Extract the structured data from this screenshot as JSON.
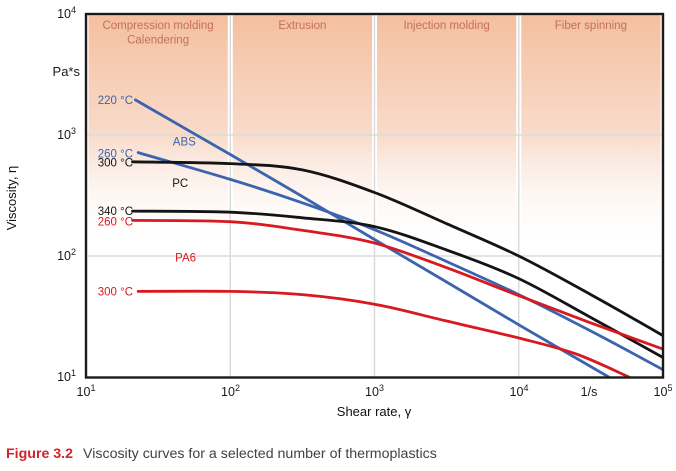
{
  "figure": {
    "label": "Figure 3.2",
    "caption": "Viscosity curves for a selected number of thermoplastics"
  },
  "axes": {
    "y_title": "Viscosity, η",
    "y_unit": "Pa*s",
    "y_ticks": [
      {
        "base": "10",
        "exp": "4"
      },
      {
        "base": "10",
        "exp": "3"
      },
      {
        "base": "10",
        "exp": "2"
      },
      {
        "base": "10",
        "exp": "1"
      }
    ],
    "x_title": "Shear rate, γ",
    "x_unit": "1/s",
    "x_ticks": [
      {
        "base": "10",
        "exp": "1"
      },
      {
        "base": "10",
        "exp": "2"
      },
      {
        "base": "10",
        "exp": "3"
      },
      {
        "base": "10",
        "exp": "4"
      },
      {
        "base": "10",
        "exp": "5"
      }
    ]
  },
  "colors": {
    "abs": "#3c64ae",
    "pc": "#141414",
    "pa6": "#d8191f",
    "band_top": "#f4bf9f",
    "band_text": "#c56f5a",
    "grid": "#d9d9d9",
    "frame": "#1a1a1a",
    "figure_label": "#d2232a",
    "caption_text": "#3f4245"
  },
  "chart_data": {
    "type": "line",
    "title": "Viscosity curves for a selected number of thermoplastics",
    "xlabel": "Shear rate, γ (1/s)",
    "ylabel": "Viscosity, η (Pa*s)",
    "x_scale": "log",
    "y_scale": "log",
    "xlim": [
      10,
      100000
    ],
    "ylim": [
      10,
      10000
    ],
    "grid": true,
    "x_gridlines": [
      100,
      1000,
      10000
    ],
    "y_gridlines": [
      1000,
      100
    ],
    "process_regions": [
      {
        "lines": [
          "Compression molding",
          "Calendering"
        ],
        "x_range": [
          10,
          100
        ]
      },
      {
        "lines": [
          "Extrusion"
        ],
        "x_range": [
          100,
          1000
        ]
      },
      {
        "lines": [
          "Injection molding"
        ],
        "x_range": [
          1000,
          10000
        ]
      },
      {
        "lines": [
          "Fiber spinning"
        ],
        "x_range": [
          10000,
          100000
        ]
      }
    ],
    "series": [
      {
        "name": "ABS 220 C",
        "material": "ABS",
        "temperature": "220 °C",
        "color": "#3c64ae",
        "points": [
          [
            22,
            1950
          ],
          [
            100,
            690
          ],
          [
            316,
            310
          ],
          [
            1000,
            137
          ],
          [
            3160,
            61
          ],
          [
            10000,
            27
          ],
          [
            42000,
            10
          ]
        ]
      },
      {
        "name": "ABS 260 C",
        "material": "ABS",
        "temperature": "260 °C",
        "color": "#3c64ae",
        "points": [
          [
            23,
            715
          ],
          [
            100,
            430
          ],
          [
            316,
            275
          ],
          [
            1000,
            165
          ],
          [
            3160,
            90
          ],
          [
            10000,
            48
          ],
          [
            31600,
            24
          ],
          [
            100000,
            11.5
          ]
        ]
      },
      {
        "name": "PC 300 C",
        "material": "PC",
        "temperature": "300 °C",
        "color": "#141414",
        "points": [
          [
            21,
            600
          ],
          [
            100,
            580
          ],
          [
            316,
            515
          ],
          [
            1000,
            335
          ],
          [
            3160,
            185
          ],
          [
            10000,
            100
          ],
          [
            31600,
            48
          ],
          [
            100000,
            22
          ]
        ]
      },
      {
        "name": "PC 340 C",
        "material": "PC",
        "temperature": "340 °C",
        "color": "#141414",
        "points": [
          [
            21,
            235
          ],
          [
            100,
            230
          ],
          [
            316,
            207
          ],
          [
            1000,
            175
          ],
          [
            3160,
            112
          ],
          [
            10000,
            65
          ],
          [
            31600,
            31
          ],
          [
            100000,
            14.5
          ]
        ]
      },
      {
        "name": "PA6 260 C",
        "material": "PA6",
        "temperature": "260 °C",
        "color": "#d8191f",
        "points": [
          [
            21,
            197
          ],
          [
            100,
            192
          ],
          [
            316,
            163
          ],
          [
            1000,
            128
          ],
          [
            3160,
            80
          ],
          [
            10000,
            47
          ],
          [
            31600,
            28
          ],
          [
            100000,
            17
          ]
        ]
      },
      {
        "name": "PA6 300 C",
        "material": "PA6",
        "temperature": "300 °C",
        "color": "#d8191f",
        "points": [
          [
            23,
            51
          ],
          [
            100,
            51
          ],
          [
            316,
            48
          ],
          [
            1000,
            40
          ],
          [
            3160,
            29
          ],
          [
            10000,
            21
          ],
          [
            25000,
            15.5
          ],
          [
            58000,
            10
          ]
        ]
      }
    ],
    "annotations": [
      {
        "text": "220 °C",
        "color": "#3c64ae",
        "shear": 16,
        "viscosity": 1950
      },
      {
        "text": "260 °C",
        "color": "#3c64ae",
        "shear": 16,
        "viscosity": 700
      },
      {
        "text": "300 °C",
        "color": "#141414",
        "shear": 16,
        "viscosity": 590
      },
      {
        "text": "ABS",
        "color": "#3c64ae",
        "shear": 48,
        "viscosity": 880
      },
      {
        "text": "PC",
        "color": "#141414",
        "shear": 45,
        "viscosity": 400
      },
      {
        "text": "340 °C",
        "color": "#141414",
        "shear": 16,
        "viscosity": 235
      },
      {
        "text": "260 °C",
        "color": "#d8191f",
        "shear": 16,
        "viscosity": 193
      },
      {
        "text": "PA6",
        "color": "#d8191f",
        "shear": 49,
        "viscosity": 97
      },
      {
        "text": "300 °C",
        "color": "#d8191f",
        "shear": 16,
        "viscosity": 51
      }
    ]
  }
}
